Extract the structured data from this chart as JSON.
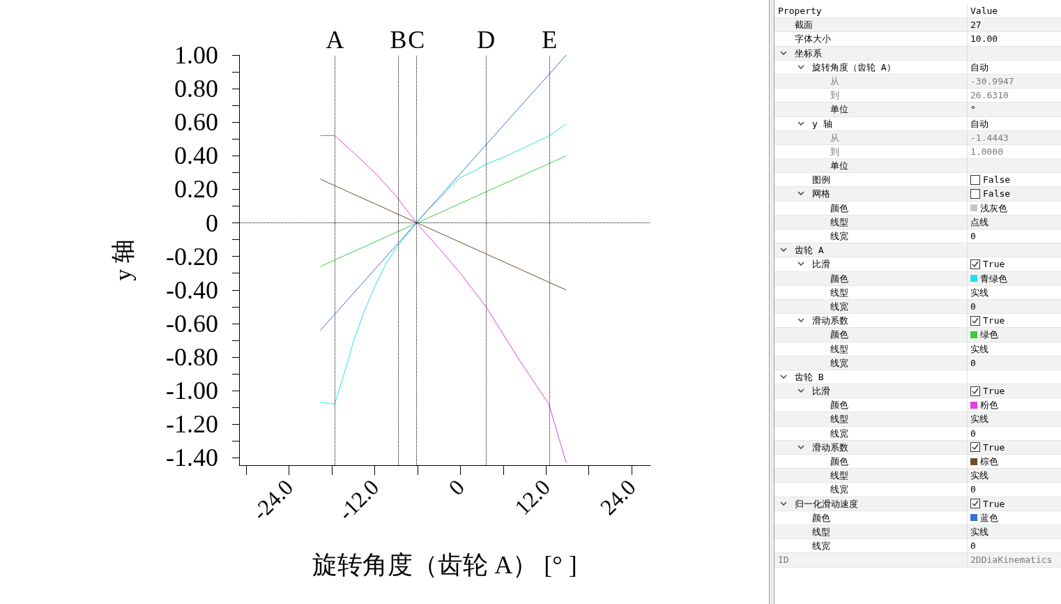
{
  "chart_data": [
    {
      "type": "line",
      "xlabel": "旋转角度（齿轮 A） [° ]",
      "ylabel": "y 轴",
      "xlim": [
        -30.9947,
        26.631
      ],
      "ylim": [
        -1.4443,
        1.0
      ],
      "xticks": [
        {
          "value": -30,
          "label": null
        },
        {
          "value": -24,
          "label": "-24.0"
        },
        {
          "value": -18,
          "label": null
        },
        {
          "value": -12,
          "label": "-12.0"
        },
        {
          "value": -6,
          "label": null
        },
        0,
        {
          "value": 6,
          "label": null
        },
        {
          "value": 12,
          "label": "12.0"
        },
        {
          "value": 18,
          "label": null
        },
        {
          "value": 24,
          "label": "24.0"
        }
      ],
      "yticks": [
        {
          "value": -1.4,
          "label": "-1.40"
        },
        {
          "value": -1.3,
          "label": null
        },
        {
          "value": -1.2,
          "label": "-1.20"
        },
        {
          "value": -1.1,
          "label": null
        },
        {
          "value": -1.0,
          "label": "-1.00"
        },
        {
          "value": -0.9,
          "label": null
        },
        {
          "value": -0.8,
          "label": "-0.80"
        },
        {
          "value": -0.7,
          "label": null
        },
        {
          "value": -0.6,
          "label": "-0.60"
        },
        {
          "value": -0.5,
          "label": null
        },
        {
          "value": -0.4,
          "label": "-0.40"
        },
        {
          "value": -0.3,
          "label": null
        },
        {
          "value": -0.2,
          "label": "-0.20"
        },
        {
          "value": -0.1,
          "label": null
        },
        0,
        {
          "value": 0.1,
          "label": null
        },
        {
          "value": 0.2,
          "label": "0.20"
        },
        {
          "value": 0.3,
          "label": null
        },
        {
          "value": 0.4,
          "label": "0.40"
        },
        {
          "value": 0.5,
          "label": null
        },
        {
          "value": 0.6,
          "label": "0.60"
        },
        {
          "value": 0.7,
          "label": null
        },
        {
          "value": 0.8,
          "label": "0.80"
        },
        {
          "value": 0.9,
          "label": null
        },
        {
          "value": 1.0,
          "label": "1.00"
        }
      ],
      "marker": "none",
      "line_style": "solid",
      "series": [
        {
          "color": "#22e0f0",
          "x": [
            -19.6,
            -17.6,
            -16,
            -15,
            -13.5,
            -12,
            -10.5,
            -9,
            -7.5,
            -6.15,
            -4.5,
            -3,
            -1.5,
            0,
            2,
            3.6,
            6,
            8,
            10,
            12.5,
            14.83
          ],
          "values": [
            -1.07,
            -1.08,
            -0.86,
            -0.71,
            -0.53,
            -0.38,
            -0.25,
            -0.15,
            -0.07,
            0,
            0.08,
            0.14,
            0.21,
            0.27,
            0.31,
            0.35,
            0.39,
            0.43,
            0.47,
            0.52,
            0.59
          ]
        },
        {
          "color": "#3ccc3c",
          "x": [
            -19.6,
            14.83
          ],
          "values": [
            -0.26,
            0.4
          ]
        },
        {
          "color": "#e040e0",
          "x": [
            -19.6,
            -17.6,
            -15,
            -12,
            -9,
            -6.15,
            -3,
            0,
            3.6,
            8,
            12.4,
            14.83
          ],
          "values": [
            0.52,
            0.52,
            0.42,
            0.3,
            0.16,
            0,
            -0.15,
            -0.3,
            -0.5,
            -0.8,
            -1.08,
            -1.43
          ]
        },
        {
          "color": "#6e4e2e",
          "x": [
            -19.6,
            14.83
          ],
          "values": [
            0.26,
            -0.4
          ]
        },
        {
          "color": "#3a70d8",
          "x": [
            -19.6,
            14.83
          ],
          "values": [
            -0.64,
            1.0
          ]
        }
      ],
      "ref_lines": [
        {
          "axis": "x",
          "value": -17.56,
          "label": "A",
          "line_style": "dotted",
          "color": "#000000"
        },
        {
          "axis": "x",
          "value": -8.68,
          "label": "B",
          "line_style": "dotted",
          "color": "#000000"
        },
        {
          "axis": "x",
          "value": -6.15,
          "label": "C",
          "line_style": "dotted",
          "color": "#000000"
        },
        {
          "axis": "x",
          "value": 3.61,
          "label": "D",
          "line_style": "dotted",
          "color": "#000000"
        },
        {
          "axis": "x",
          "value": 12.49,
          "label": "E",
          "line_style": "dotted",
          "color": "#000000"
        },
        {
          "axis": "y",
          "value": 0,
          "line_style": "dotted",
          "color": "#000000"
        }
      ]
    },
    {
      "type": "other",
      "annotations": [
        "Property",
        "Value",
        "截面",
        "27",
        "字体大小",
        "10.00",
        "坐标系",
        "旋转角度（齿轮 A）",
        "自动",
        "从",
        "-30.9947",
        "到",
        "26.6310",
        "单位",
        "°",
        "y 轴",
        "自动",
        "从",
        "-1.4443",
        "到",
        "1.0000",
        "单位",
        "图例",
        "False",
        "网格",
        "False",
        "颜色",
        "浅灰色",
        "线型",
        "点线",
        "线宽",
        "0",
        "齿轮 A",
        "比滑",
        "True",
        "颜色",
        "青绿色",
        "线型",
        "实线",
        "线宽",
        "0",
        "滑动系数",
        "True",
        "颜色",
        "绿色",
        "线型",
        "实线",
        "线宽",
        "0",
        "齿轮 B",
        "比滑",
        "True",
        "颜色",
        "粉色",
        "线型",
        "实线",
        "线宽",
        "0",
        "滑动系数",
        "True",
        "颜色",
        "棕色",
        "线型",
        "实线",
        "线宽",
        "0",
        "归一化滑动速度",
        "True",
        "颜色",
        "蓝色",
        "线型",
        "实线",
        "线宽",
        "0",
        "ID",
        "2DDiaKinematics"
      ]
    }
  ]
}
